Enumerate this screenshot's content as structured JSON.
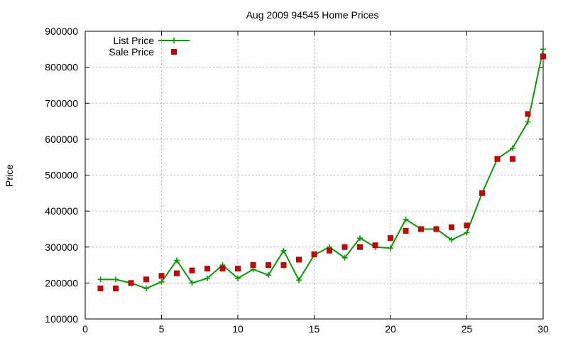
{
  "chart_data": {
    "type": "line",
    "title": "Aug 2009 94545 Home Prices",
    "xlabel": "",
    "ylabel": "Price",
    "xlim": [
      0,
      30
    ],
    "ylim": [
      100000,
      900000
    ],
    "x_ticks": [
      "0",
      "5",
      "10",
      "15",
      "20",
      "25",
      "30"
    ],
    "y_ticks": [
      "100000",
      "200000",
      "300000",
      "400000",
      "500000",
      "600000",
      "700000",
      "800000",
      "900000"
    ],
    "grid": true,
    "legend_position": "top-left",
    "series": [
      {
        "name": "List Price",
        "style": "line-with-plus-markers",
        "color": "#00a000",
        "x": [
          1,
          2,
          3,
          4,
          5,
          6,
          7,
          8,
          9,
          10,
          11,
          12,
          13,
          14,
          15,
          16,
          17,
          18,
          19,
          20,
          21,
          22,
          23,
          24,
          25,
          26,
          27,
          28,
          29,
          30
        ],
        "y": [
          210000,
          210000,
          200000,
          185000,
          203000,
          263000,
          200000,
          213000,
          250000,
          213000,
          238000,
          222000,
          290000,
          208000,
          278000,
          300000,
          270000,
          325000,
          300000,
          297000,
          377000,
          350000,
          350000,
          320000,
          340000,
          450000,
          545000,
          575000,
          648000,
          850000
        ]
      },
      {
        "name": "Sale Price",
        "style": "square-markers",
        "color": "#cc0000",
        "x": [
          1,
          2,
          3,
          4,
          5,
          6,
          7,
          8,
          9,
          10,
          11,
          12,
          13,
          14,
          15,
          16,
          17,
          18,
          19,
          20,
          21,
          22,
          23,
          24,
          25,
          26,
          27,
          28,
          29,
          30
        ],
        "y": [
          185000,
          185000,
          200000,
          210000,
          220000,
          227000,
          235000,
          240000,
          240000,
          240000,
          250000,
          250000,
          250000,
          265000,
          280000,
          290000,
          300000,
          300000,
          305000,
          325000,
          345000,
          350000,
          350000,
          355000,
          360000,
          450000,
          545000,
          545000,
          670000,
          830000
        ]
      }
    ]
  }
}
